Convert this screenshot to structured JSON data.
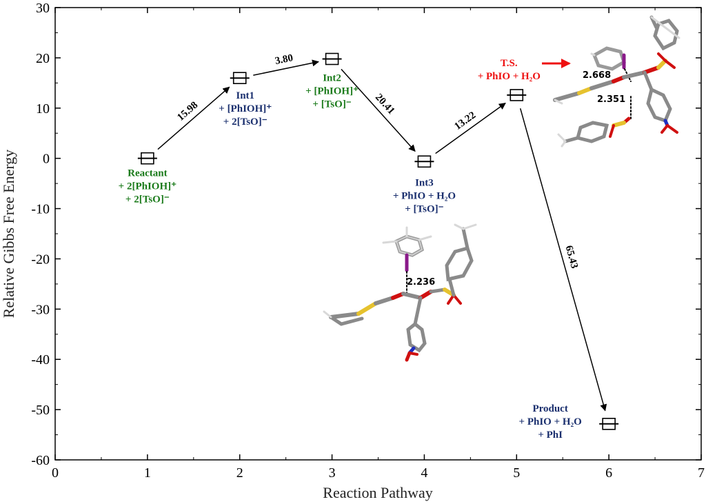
{
  "chart_data": {
    "type": "scatter",
    "title": "",
    "xlabel": "Reaction Pathway",
    "ylabel": "Relative Gibbs Free Energy",
    "xlim": [
      0,
      7
    ],
    "ylim": [
      -60,
      30
    ],
    "x_ticks": [
      0,
      1,
      2,
      3,
      4,
      5,
      6,
      7
    ],
    "y_ticks": [
      -60,
      -50,
      -40,
      -30,
      -20,
      -10,
      0,
      10,
      20,
      30
    ],
    "grid": false,
    "legend": "none",
    "points": [
      {
        "id": "reactant",
        "x": 1,
        "y": 0,
        "label": [
          "Reactant",
          "+ 2[PhIOH]⁺",
          "+ 2[TsO]⁻"
        ],
        "color": "#1a7a1a"
      },
      {
        "id": "int1",
        "x": 2,
        "y": 15.98,
        "label": [
          "Int1",
          "+ [PhIOH]⁺",
          "+ 2[TsO]⁻"
        ],
        "color": "#1a2f6e"
      },
      {
        "id": "int2",
        "x": 3,
        "y": 19.78,
        "label": [
          "Int2",
          "+ [PhIOH]⁺",
          "+ [TsO]⁻"
        ],
        "color": "#1a7a1a"
      },
      {
        "id": "int3",
        "x": 4,
        "y": -0.63,
        "label": [
          "Int3",
          "+ PhIO + H₂O",
          "+ [TsO]⁻"
        ],
        "color": "#1a2f6e"
      },
      {
        "id": "ts",
        "x": 5,
        "y": 12.59,
        "label": [
          "T.S.",
          "+ PhIO + H₂O"
        ],
        "color": "#ee1111"
      },
      {
        "id": "product",
        "x": 6,
        "y": -52.84,
        "label": [
          "Product",
          "+ PhIO + H₂O",
          "+ PhI"
        ],
        "color": "#1a2f6e"
      }
    ],
    "barriers": [
      {
        "from": "reactant",
        "to": "int1",
        "label": "15.98"
      },
      {
        "from": "int1",
        "to": "int2",
        "label": "3.80"
      },
      {
        "from": "int2",
        "to": "int3",
        "label": "20.41"
      },
      {
        "from": "int3",
        "to": "ts",
        "label": "13.22"
      },
      {
        "from": "ts",
        "to": "product",
        "label": "65.43"
      }
    ],
    "annotations": {
      "int3_distance": "2.236",
      "ts_distance_1": "2.668",
      "ts_distance_2": "2.351"
    },
    "colors": {
      "axis": "#000000",
      "arrow": "#000000",
      "ts_arrow": "#ee1111",
      "molecule_carbon": "#8a8a8a",
      "molecule_sulfur": "#e6c22e",
      "molecule_oxygen": "#d01010",
      "molecule_nitrogen": "#2030c0",
      "molecule_iodine": "#8a1a8a"
    }
  }
}
